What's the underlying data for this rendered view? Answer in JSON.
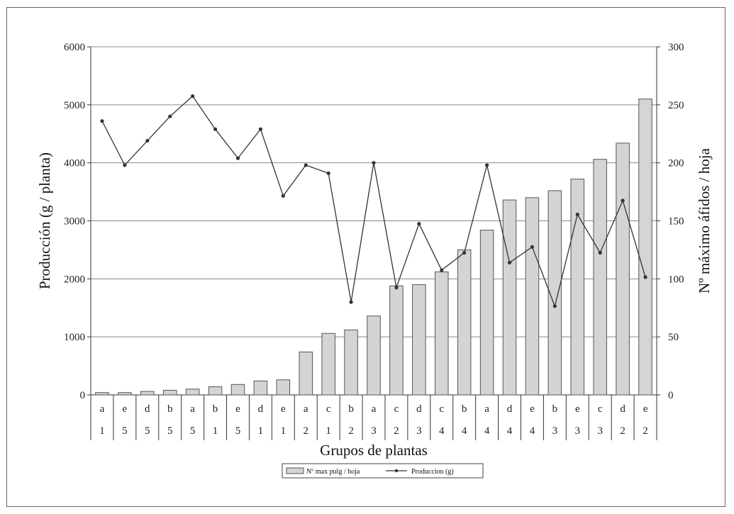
{
  "chart_data": {
    "type": "bar",
    "xlabel": "Grupos de plantas",
    "ylabel": "Producción (g / planta)",
    "y2label": "Nº máximo áfidos / hoja",
    "ylim": [
      0,
      6000
    ],
    "y2lim": [
      0,
      300
    ],
    "yticks": [
      "0",
      "1000",
      "2000",
      "3000",
      "4000",
      "5000",
      "6000"
    ],
    "y2ticks": [
      "0",
      "50",
      "100",
      "150",
      "200",
      "250",
      "300"
    ],
    "grid": true,
    "legend_position": "bottom",
    "categories": [
      [
        "a",
        "1"
      ],
      [
        "e",
        "5"
      ],
      [
        "d",
        "5"
      ],
      [
        "b",
        "5"
      ],
      [
        "a",
        "5"
      ],
      [
        "b",
        "1"
      ],
      [
        "e",
        "5"
      ],
      [
        "d",
        "1"
      ],
      [
        "e",
        "1"
      ],
      [
        "a",
        "2"
      ],
      [
        "c",
        "1"
      ],
      [
        "b",
        "2"
      ],
      [
        "a",
        "3"
      ],
      [
        "c",
        "2"
      ],
      [
        "d",
        "3"
      ],
      [
        "c",
        "4"
      ],
      [
        "b",
        "4"
      ],
      [
        "a",
        "4"
      ],
      [
        "d",
        "4"
      ],
      [
        "e",
        "4"
      ],
      [
        "b",
        "3"
      ],
      [
        "e",
        "3"
      ],
      [
        "c",
        "3"
      ],
      [
        "d",
        "2"
      ],
      [
        "e",
        "2"
      ]
    ],
    "series": [
      {
        "name": "Nº max pulg / hoja",
        "type": "bar",
        "axis": "right",
        "values": [
          2,
          2,
          3,
          4,
          5,
          7,
          9,
          12,
          13,
          37,
          53,
          56,
          68,
          94,
          95,
          106,
          125,
          142,
          168,
          170,
          176,
          186,
          203,
          217,
          255
        ]
      },
      {
        "name": "Produccion (g)",
        "type": "line",
        "axis": "left",
        "values": [
          4720,
          3960,
          4380,
          4800,
          5150,
          4580,
          4080,
          4580,
          3430,
          3960,
          3820,
          1600,
          4000,
          1850,
          2950,
          2150,
          2450,
          3960,
          2280,
          2550,
          1530,
          3110,
          2450,
          3350,
          2030
        ]
      }
    ]
  },
  "colors": {
    "bar_fill": "#d4d4d4",
    "bar_stroke": "#555555",
    "line": "#333333",
    "grid": "#888888"
  }
}
